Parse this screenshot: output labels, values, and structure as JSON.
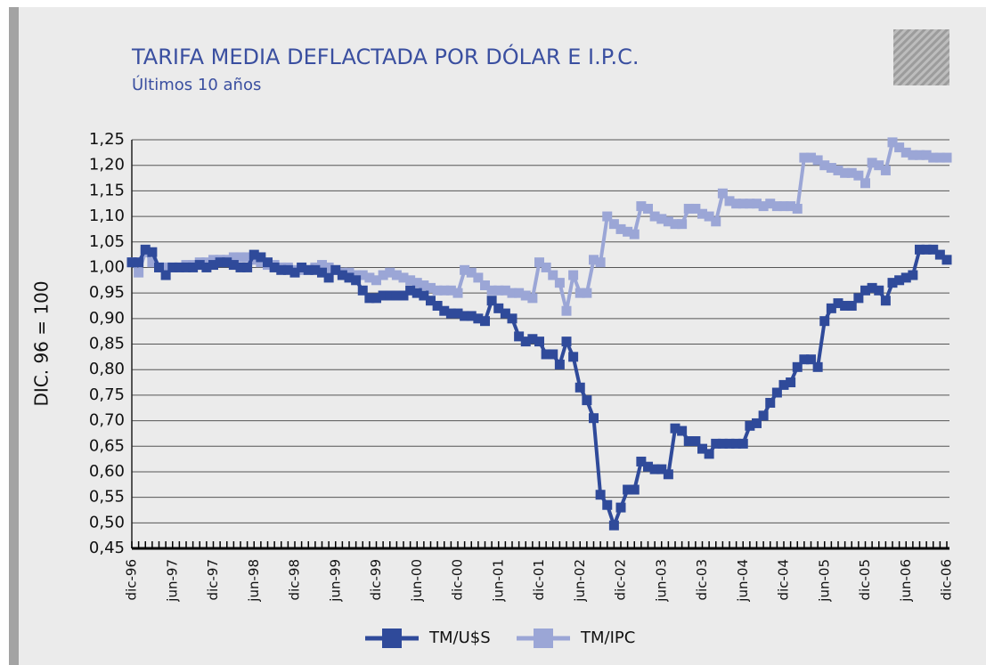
{
  "chart_data": {
    "type": "line",
    "title": "TARIFA MEDIA DEFLACTADA POR DÓLAR E I.P.C.",
    "subtitle": "Últimos 10 años",
    "y_label": "DIC. 96 = 100",
    "categories": [
      "dic-96",
      null,
      null,
      null,
      null,
      null,
      "jun-97",
      null,
      null,
      null,
      null,
      null,
      "dic-97",
      null,
      null,
      null,
      null,
      null,
      "jun-98",
      null,
      null,
      null,
      null,
      null,
      "dic-98",
      null,
      null,
      null,
      null,
      null,
      "jun-99",
      null,
      null,
      null,
      null,
      null,
      "dic-99",
      null,
      null,
      null,
      null,
      null,
      "jun-00",
      null,
      null,
      null,
      null,
      null,
      "dic-00",
      null,
      null,
      null,
      null,
      null,
      "jun-01",
      null,
      null,
      null,
      null,
      null,
      "dic-01",
      null,
      null,
      null,
      null,
      null,
      "jun-02",
      null,
      null,
      null,
      null,
      null,
      "dic-02",
      null,
      null,
      null,
      null,
      null,
      "jun-03",
      null,
      null,
      null,
      null,
      null,
      "dic-03",
      null,
      null,
      null,
      null,
      null,
      "jun-04",
      null,
      null,
      null,
      null,
      null,
      "dic-04",
      null,
      null,
      null,
      null,
      null,
      "jun-05",
      null,
      null,
      null,
      null,
      null,
      "dic-05",
      null,
      null,
      null,
      null,
      null,
      "jun-06",
      null,
      null,
      null,
      null,
      null,
      "dic-06"
    ],
    "series": [
      {
        "name": "TM/U$S",
        "color": "#2f4a9a",
        "values": [
          1.01,
          1.01,
          1.035,
          1.03,
          1.0,
          0.985,
          1.0,
          1.0,
          1.0,
          1.0,
          1.005,
          1.0,
          1.005,
          1.01,
          1.01,
          1.005,
          1.0,
          1.0,
          1.025,
          1.02,
          1.01,
          1.0,
          0.995,
          0.995,
          0.99,
          1.0,
          0.995,
          0.995,
          0.99,
          0.98,
          0.995,
          0.985,
          0.98,
          0.975,
          0.955,
          0.94,
          0.94,
          0.945,
          0.945,
          0.945,
          0.945,
          0.955,
          0.95,
          0.945,
          0.935,
          0.925,
          0.915,
          0.91,
          0.91,
          0.905,
          0.905,
          0.9,
          0.895,
          0.935,
          0.92,
          0.91,
          0.9,
          0.865,
          0.855,
          0.86,
          0.855,
          0.83,
          0.83,
          0.81,
          0.855,
          0.825,
          0.765,
          0.74,
          0.705,
          0.555,
          0.535,
          0.495,
          0.53,
          0.565,
          0.565,
          0.62,
          0.61,
          0.605,
          0.605,
          0.595,
          0.685,
          0.68,
          0.66,
          0.66,
          0.645,
          0.635,
          0.655,
          0.655,
          0.655,
          0.655,
          0.655,
          0.69,
          0.695,
          0.71,
          0.735,
          0.755,
          0.77,
          0.775,
          0.805,
          0.82,
          0.82,
          0.805,
          0.895,
          0.92,
          0.93,
          0.925,
          0.925,
          0.94,
          0.955,
          0.96,
          0.955,
          0.935,
          0.97,
          0.975,
          0.98,
          0.985,
          1.035,
          1.035,
          1.035,
          1.025,
          1.015
        ]
      },
      {
        "name": "TM/IPC",
        "color": "#9ba6d6",
        "values": [
          1.01,
          0.99,
          1.03,
          1.01,
          1.0,
          1.0,
          1.0,
          1.0,
          1.005,
          1.005,
          1.01,
          1.01,
          1.015,
          1.015,
          1.015,
          1.02,
          1.02,
          1.02,
          1.015,
          1.01,
          1.005,
          1.005,
          1.0,
          1.0,
          0.995,
          0.995,
          0.995,
          1.0,
          1.005,
          1.0,
          0.995,
          0.99,
          0.99,
          0.985,
          0.985,
          0.98,
          0.975,
          0.985,
          0.99,
          0.985,
          0.98,
          0.975,
          0.97,
          0.965,
          0.96,
          0.955,
          0.955,
          0.955,
          0.95,
          0.995,
          0.99,
          0.98,
          0.965,
          0.955,
          0.955,
          0.955,
          0.95,
          0.95,
          0.945,
          0.94,
          1.01,
          1.0,
          0.985,
          0.97,
          0.915,
          0.985,
          0.95,
          0.95,
          1.015,
          1.01,
          1.1,
          1.085,
          1.075,
          1.07,
          1.065,
          1.12,
          1.115,
          1.1,
          1.095,
          1.09,
          1.085,
          1.085,
          1.115,
          1.115,
          1.105,
          1.1,
          1.09,
          1.145,
          1.13,
          1.125,
          1.125,
          1.125,
          1.125,
          1.12,
          1.125,
          1.12,
          1.12,
          1.12,
          1.115,
          1.215,
          1.215,
          1.21,
          1.2,
          1.195,
          1.19,
          1.185,
          1.185,
          1.18,
          1.165,
          1.205,
          1.2,
          1.19,
          1.245,
          1.235,
          1.225,
          1.22,
          1.22,
          1.22,
          1.215,
          1.215,
          1.215
        ]
      }
    ],
    "ylim": [
      0.45,
      1.25
    ],
    "yticks": [
      {
        "value": 0.45,
        "label": "0,45"
      },
      {
        "value": 0.5,
        "label": "0,50"
      },
      {
        "value": 0.55,
        "label": "0,55"
      },
      {
        "value": 0.6,
        "label": "0,60"
      },
      {
        "value": 0.65,
        "label": "0,65"
      },
      {
        "value": 0.7,
        "label": "0,70"
      },
      {
        "value": 0.75,
        "label": "0,75"
      },
      {
        "value": 0.8,
        "label": "0,80"
      },
      {
        "value": 0.85,
        "label": "0,85"
      },
      {
        "value": 0.9,
        "label": "0,90"
      },
      {
        "value": 0.95,
        "label": "0,95"
      },
      {
        "value": 1.0,
        "label": "1,00"
      },
      {
        "value": 1.05,
        "label": "1,05"
      },
      {
        "value": 1.1,
        "label": "1,10"
      },
      {
        "value": 1.15,
        "label": "1,15"
      },
      {
        "value": 1.2,
        "label": "1,20"
      },
      {
        "value": 1.25,
        "label": "1,25"
      }
    ],
    "grid": true,
    "legend": "bottom"
  }
}
